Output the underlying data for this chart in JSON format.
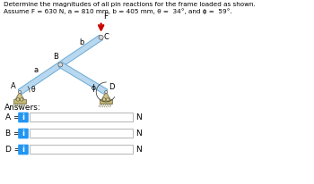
{
  "title_line1": "Determine the magnitudes of all pin reactions for the frame loaded as shown.",
  "title_line2": "Assume F = 630 N, a = 810 mm, b = 405 mm, θ =  34°, and ϕ =  59°.",
  "answers_label": "Answers:",
  "answer_rows": [
    {
      "label": "A =",
      "unit": "N"
    },
    {
      "label": "B =",
      "unit": "N"
    },
    {
      "label": "D =",
      "unit": "N"
    }
  ],
  "bg_color": "#ffffff",
  "frame_color": "#b8d8f0",
  "frame_edge_color": "#6aaad4",
  "force_color": "#cc0000",
  "text_color": "#000000",
  "info_btn_color": "#2196F3",
  "info_btn_text": "i",
  "input_border_color": "#aaaaaa",
  "support_body_color": "#c8b880",
  "support_edge_color": "#888855",
  "pin_fill_color": "#d0d0d0",
  "theta": 34.0,
  "phi": 59.0,
  "a_mm": 810,
  "b_mm": 405
}
